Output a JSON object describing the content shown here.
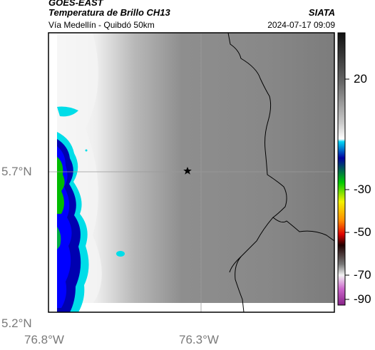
{
  "header": {
    "satellite": "GOES-EAST",
    "product": "Temperatura de Brillo CH13",
    "route": "Vía Medellín - Quibdó 50km",
    "organization": "SIATA",
    "timestamp": "2024-07-17 09:09"
  },
  "axes": {
    "lat_ticks": [
      "5.7°N",
      "5.2°N"
    ],
    "lon_ticks": [
      "76.8°W",
      "76.3°W"
    ]
  },
  "colorbar": {
    "ticks": [
      "20",
      "-30",
      "-50",
      "-70",
      "-90"
    ]
  },
  "map": {
    "marker_icon": "star-icon",
    "ocean_color": "#ffffff",
    "land_color": "#8c8c8c"
  }
}
